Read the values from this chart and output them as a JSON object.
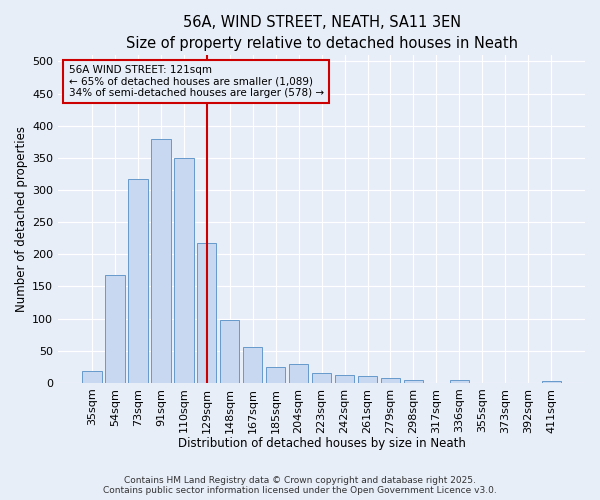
{
  "title": "56A, WIND STREET, NEATH, SA11 3EN",
  "subtitle": "Size of property relative to detached houses in Neath",
  "xlabel": "Distribution of detached houses by size in Neath",
  "ylabel": "Number of detached properties",
  "categories": [
    "35sqm",
    "54sqm",
    "73sqm",
    "91sqm",
    "110sqm",
    "129sqm",
    "148sqm",
    "167sqm",
    "185sqm",
    "204sqm",
    "223sqm",
    "242sqm",
    "261sqm",
    "279sqm",
    "298sqm",
    "317sqm",
    "336sqm",
    "355sqm",
    "373sqm",
    "392sqm",
    "411sqm"
  ],
  "values": [
    18,
    168,
    317,
    380,
    350,
    218,
    98,
    55,
    25,
    30,
    15,
    12,
    10,
    7,
    5,
    0,
    4,
    0,
    0,
    0,
    3
  ],
  "bar_color": "#c8d8f0",
  "bar_edge_color": "#6699cc",
  "vline_x": 5.0,
  "vline_color": "#cc0000",
  "annotation_text": "56A WIND STREET: 121sqm\n← 65% of detached houses are smaller (1,089)\n34% of semi-detached houses are larger (578) →",
  "annotation_box_color": "#cc0000",
  "annotation_box_fill": "#e8eef8",
  "ylim": [
    0,
    510
  ],
  "yticks": [
    0,
    50,
    100,
    150,
    200,
    250,
    300,
    350,
    400,
    450,
    500
  ],
  "footer": "Contains HM Land Registry data © Crown copyright and database right 2025.\nContains public sector information licensed under the Open Government Licence v3.0.",
  "bg_color": "#e8eef8",
  "grid_color": "#ffffff",
  "title_fontsize": 10.5,
  "subtitle_fontsize": 9.5,
  "axis_label_fontsize": 8.5,
  "tick_fontsize": 8,
  "footer_fontsize": 6.5
}
